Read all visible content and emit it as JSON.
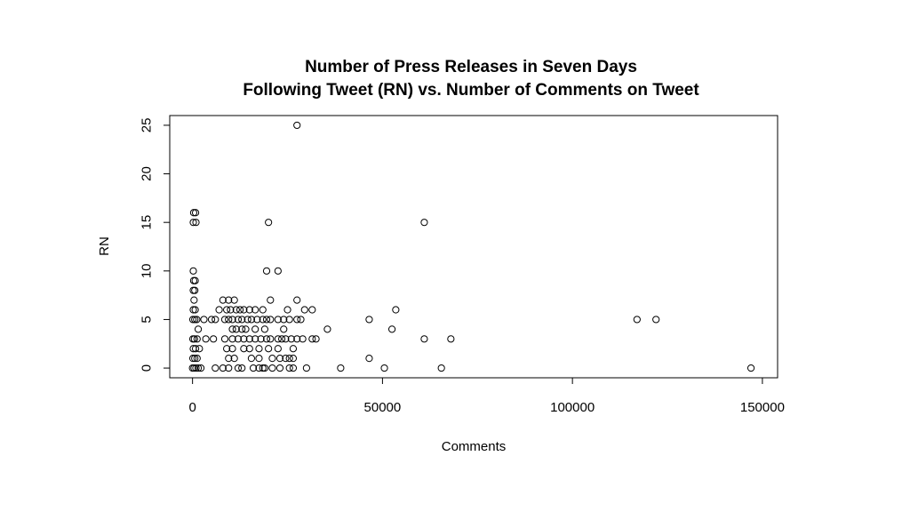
{
  "chart_data": {
    "type": "scatter",
    "title_line1": "Number of Press Releases in Seven Days",
    "title_line2": "Following Tweet (RN) vs. Number of Comments on Tweet",
    "xlabel": "Comments",
    "ylabel": "RN",
    "xlim": [
      -6000,
      154000
    ],
    "ylim": [
      -1,
      26
    ],
    "x_ticks": [
      0,
      50000,
      100000,
      150000
    ],
    "x_tick_labels": [
      "0",
      "50000",
      "100000",
      "150000"
    ],
    "y_ticks": [
      0,
      5,
      10,
      15,
      20,
      25
    ],
    "y_tick_labels": [
      "0",
      "5",
      "10",
      "15",
      "20",
      "25"
    ],
    "grid": false,
    "marker": "open-circle",
    "point_color": "#000000",
    "points": [
      [
        27500,
        25
      ],
      [
        300,
        16
      ],
      [
        800,
        16
      ],
      [
        200,
        15
      ],
      [
        900,
        15
      ],
      [
        20000,
        15
      ],
      [
        61000,
        15
      ],
      [
        200,
        10
      ],
      [
        19500,
        10
      ],
      [
        22500,
        10
      ],
      [
        300,
        9
      ],
      [
        700,
        9
      ],
      [
        200,
        8
      ],
      [
        600,
        8
      ],
      [
        400,
        7
      ],
      [
        8000,
        7
      ],
      [
        9500,
        7
      ],
      [
        11000,
        7
      ],
      [
        20500,
        7
      ],
      [
        27500,
        7
      ],
      [
        200,
        6
      ],
      [
        700,
        6
      ],
      [
        7000,
        6
      ],
      [
        9000,
        6
      ],
      [
        10000,
        6
      ],
      [
        11500,
        6
      ],
      [
        12500,
        6
      ],
      [
        13500,
        6
      ],
      [
        15000,
        6
      ],
      [
        16500,
        6
      ],
      [
        18500,
        6
      ],
      [
        25000,
        6
      ],
      [
        29500,
        6
      ],
      [
        31500,
        6
      ],
      [
        53500,
        6
      ],
      [
        100,
        5
      ],
      [
        600,
        5
      ],
      [
        1100,
        5
      ],
      [
        3000,
        5
      ],
      [
        5000,
        5
      ],
      [
        6000,
        5
      ],
      [
        8500,
        5
      ],
      [
        9500,
        5
      ],
      [
        10500,
        5
      ],
      [
        12000,
        5
      ],
      [
        13000,
        5
      ],
      [
        14500,
        5
      ],
      [
        15500,
        5
      ],
      [
        17000,
        5
      ],
      [
        18500,
        5
      ],
      [
        19500,
        5
      ],
      [
        20500,
        5
      ],
      [
        22500,
        5
      ],
      [
        24000,
        5
      ],
      [
        25500,
        5
      ],
      [
        27500,
        5
      ],
      [
        28500,
        5
      ],
      [
        46500,
        5
      ],
      [
        117000,
        5
      ],
      [
        122000,
        5
      ],
      [
        1500,
        4
      ],
      [
        10500,
        4
      ],
      [
        11500,
        4
      ],
      [
        13000,
        4
      ],
      [
        14000,
        4
      ],
      [
        16500,
        4
      ],
      [
        19000,
        4
      ],
      [
        24000,
        4
      ],
      [
        35500,
        4
      ],
      [
        52500,
        4
      ],
      [
        100,
        3
      ],
      [
        500,
        3
      ],
      [
        1200,
        3
      ],
      [
        3500,
        3
      ],
      [
        5500,
        3
      ],
      [
        8500,
        3
      ],
      [
        10500,
        3
      ],
      [
        12000,
        3
      ],
      [
        13500,
        3
      ],
      [
        15000,
        3
      ],
      [
        16500,
        3
      ],
      [
        18000,
        3
      ],
      [
        19500,
        3
      ],
      [
        20500,
        3
      ],
      [
        22500,
        3
      ],
      [
        23500,
        3
      ],
      [
        24500,
        3
      ],
      [
        26000,
        3
      ],
      [
        27500,
        3
      ],
      [
        29000,
        3
      ],
      [
        31500,
        3
      ],
      [
        32500,
        3
      ],
      [
        61000,
        3
      ],
      [
        68000,
        3
      ],
      [
        200,
        2
      ],
      [
        800,
        2
      ],
      [
        1800,
        2
      ],
      [
        9000,
        2
      ],
      [
        10500,
        2
      ],
      [
        13500,
        2
      ],
      [
        15000,
        2
      ],
      [
        17500,
        2
      ],
      [
        20000,
        2
      ],
      [
        22500,
        2
      ],
      [
        26500,
        2
      ],
      [
        100,
        1
      ],
      [
        600,
        1
      ],
      [
        1200,
        1
      ],
      [
        9500,
        1
      ],
      [
        11000,
        1
      ],
      [
        15500,
        1
      ],
      [
        17500,
        1
      ],
      [
        21000,
        1
      ],
      [
        23000,
        1
      ],
      [
        24500,
        1
      ],
      [
        25500,
        1
      ],
      [
        26500,
        1
      ],
      [
        46500,
        1
      ],
      [
        0,
        0
      ],
      [
        400,
        0
      ],
      [
        900,
        0
      ],
      [
        1500,
        0
      ],
      [
        2200,
        0
      ],
      [
        6000,
        0
      ],
      [
        8000,
        0
      ],
      [
        9500,
        0
      ],
      [
        12000,
        0
      ],
      [
        13000,
        0
      ],
      [
        16000,
        0
      ],
      [
        17500,
        0
      ],
      [
        18500,
        0
      ],
      [
        19000,
        0
      ],
      [
        21000,
        0
      ],
      [
        23000,
        0
      ],
      [
        25500,
        0
      ],
      [
        26500,
        0
      ],
      [
        30000,
        0
      ],
      [
        39000,
        0
      ],
      [
        50500,
        0
      ],
      [
        65500,
        0
      ],
      [
        147000,
        0
      ]
    ]
  }
}
